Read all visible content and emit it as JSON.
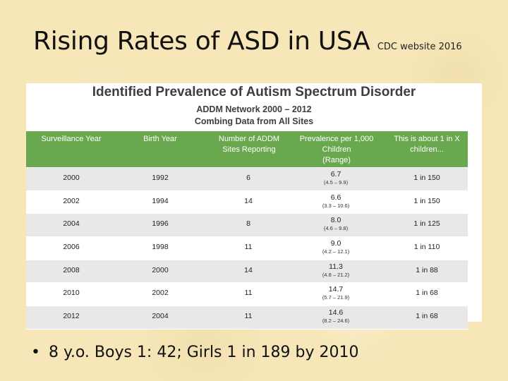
{
  "slide": {
    "title": "Rising Rates of ASD in USA",
    "source": "CDC website 2016",
    "bullet": "8 y.o. Boys 1: 42; Girls 1 in 189 by 2010"
  },
  "table": {
    "title": "Identified Prevalence of Autism Spectrum Disorder",
    "subtitle1": "ADDM Network 2000 – 2012",
    "subtitle2": "Combing Data from All Sites",
    "headers": {
      "h1": "Surveillance Year",
      "h2": "Birth Year",
      "h3a": "Number of ADDM",
      "h3b": "Sites Reporting",
      "h4a": "Prevalence per 1,000",
      "h4b": "Children",
      "h4c": "(Range)",
      "h5a": "This is about 1 in X",
      "h5b": "children..."
    },
    "rows": [
      {
        "year": "2000",
        "birth": "1992",
        "sites": "6",
        "prev": "6.7",
        "range": "(4.5 – 9.9)",
        "ratio": "1 in 150"
      },
      {
        "year": "2002",
        "birth": "1994",
        "sites": "14",
        "prev": "6.6",
        "range": "(3.3 – 10.6)",
        "ratio": "1 in 150"
      },
      {
        "year": "2004",
        "birth": "1996",
        "sites": "8",
        "prev": "8.0",
        "range": "(4.6 – 9.8)",
        "ratio": "1 in 125"
      },
      {
        "year": "2006",
        "birth": "1998",
        "sites": "11",
        "prev": "9.0",
        "range": "(4.2 – 12.1)",
        "ratio": "1 in 110"
      },
      {
        "year": "2008",
        "birth": "2000",
        "sites": "14",
        "prev": "11.3",
        "range": "(4.8 – 21.2)",
        "ratio": "1 in 88"
      },
      {
        "year": "2010",
        "birth": "2002",
        "sites": "11",
        "prev": "14.7",
        "range": "(5.7 – 21.9)",
        "ratio": "1 in 68"
      },
      {
        "year": "2012",
        "birth": "2004",
        "sites": "11",
        "prev": "14.6",
        "range": "(8.2 – 24.6)",
        "ratio": "1 in 68"
      }
    ]
  },
  "colors": {
    "header_green": "#6aa84f",
    "row_gray": "#e8e8e8",
    "background": "#f6e6b8"
  }
}
